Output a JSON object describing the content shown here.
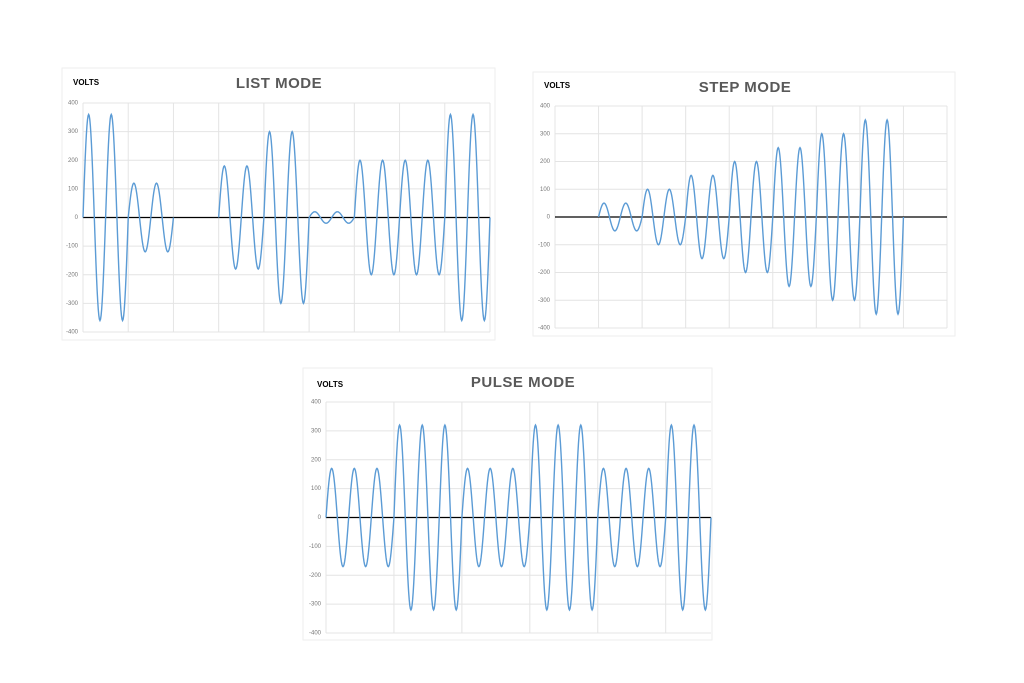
{
  "chart_data": [
    {
      "type": "waveform",
      "title": "LIST MODE",
      "y_label": "VOLTS",
      "color": "#5b9bd5",
      "values": [
        360,
        360,
        120,
        120,
        null,
        null,
        180,
        180,
        300,
        300,
        20,
        20,
        200,
        200,
        200,
        200,
        360,
        360
      ],
      "ylim": [
        -400,
        400
      ],
      "yticks": [
        -400,
        -300,
        -200,
        -100,
        0,
        100,
        200,
        300,
        400
      ],
      "grid": true
    },
    {
      "type": "waveform",
      "title": "STEP MODE",
      "y_label": "VOLTS",
      "color": "#5b9bd5",
      "values": [
        null,
        null,
        50,
        50,
        100,
        100,
        150,
        150,
        200,
        200,
        250,
        250,
        300,
        300,
        350,
        350,
        null,
        null
      ],
      "ylim": [
        -400,
        400
      ],
      "yticks": [
        -400,
        -300,
        -200,
        -100,
        0,
        100,
        200,
        300,
        400
      ],
      "grid": true
    },
    {
      "type": "waveform",
      "title": "PULSE MODE",
      "y_label": "VOLTS",
      "color": "#5b9bd5",
      "values": [
        170,
        170,
        170,
        320,
        320,
        320,
        170,
        170,
        170,
        320,
        320,
        320,
        170,
        170,
        170,
        320,
        320
      ],
      "ylim": [
        -400,
        400
      ],
      "yticks": [
        -400,
        -300,
        -200,
        -100,
        0,
        100,
        200,
        300,
        400
      ],
      "grid": true
    }
  ]
}
